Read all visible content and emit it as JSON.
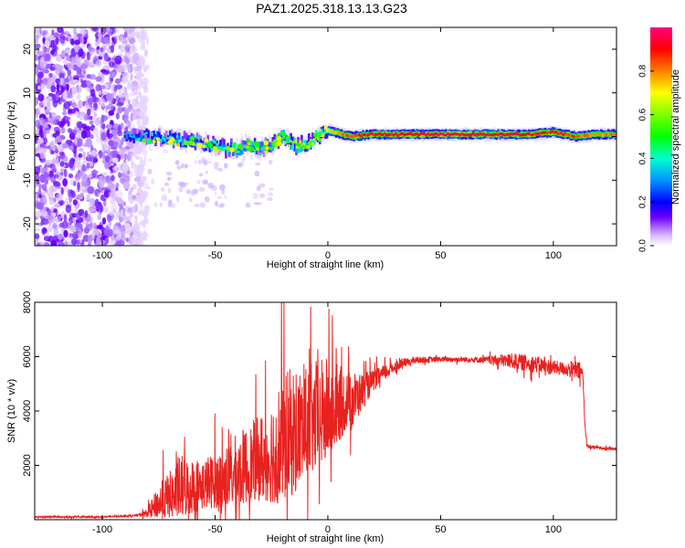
{
  "title": "PAZ1.2025.318.13.13.G23",
  "chart_data": [
    {
      "type": "heatmap",
      "name": "spectrogram",
      "xlabel": "Height of straight line (km)",
      "ylabel": "Frequency (Hz)",
      "xlim": [
        -130,
        128
      ],
      "ylim": [
        -25,
        25
      ],
      "xticks": [
        -100,
        -50,
        0,
        50,
        100
      ],
      "yticks": [
        -20,
        -10,
        0,
        10,
        20
      ],
      "colorbar": {
        "label": "Normalized spectral amplitude",
        "range": [
          0,
          1
        ],
        "ticks": [
          0.0,
          0.2,
          0.4,
          0.6,
          0.8
        ]
      },
      "noise_region_x": [
        -130,
        -80
      ],
      "signal_trace": {
        "x": [
          -90,
          -80,
          -70,
          -60,
          -50,
          -40,
          -35,
          -30,
          -25,
          -20,
          -15,
          -10,
          -5,
          0,
          10,
          20,
          30,
          40,
          50,
          60,
          70,
          80,
          90,
          100,
          110,
          120,
          128
        ],
        "freq": [
          0,
          0,
          -0.5,
          -1,
          -2,
          -3,
          -2,
          -3,
          -2,
          0,
          -2,
          -2,
          0,
          1.5,
          0,
          0.5,
          0.5,
          0.5,
          0.5,
          0.5,
          0.5,
          0.5,
          0.5,
          1,
          0,
          0.5,
          0.5
        ],
        "amplitude": [
          0.3,
          0.35,
          0.4,
          0.4,
          0.4,
          0.45,
          0.5,
          0.45,
          0.5,
          0.55,
          0.6,
          0.6,
          0.65,
          0.7,
          0.85,
          0.9,
          0.9,
          0.92,
          0.95,
          0.95,
          0.95,
          0.93,
          0.9,
          0.88,
          0.85,
          0.8,
          0.8
        ]
      }
    },
    {
      "type": "line",
      "name": "snr",
      "xlabel": "Height of straight line (km)",
      "ylabel": "SNR (10 * v/v)",
      "xlim": [
        -130,
        128
      ],
      "ylim": [
        0,
        8000
      ],
      "xticks": [
        -100,
        -50,
        0,
        50,
        100
      ],
      "yticks": [
        2000,
        4000,
        6000,
        8000
      ],
      "color": "#e8221f",
      "envelope": {
        "x": [
          -130,
          -100,
          -85,
          -80,
          -75,
          -70,
          -65,
          -60,
          -55,
          -50,
          -45,
          -40,
          -35,
          -30,
          -25,
          -20,
          -15,
          -10,
          -5,
          0,
          5,
          10,
          15,
          20,
          25,
          30,
          35,
          40,
          50,
          60,
          70,
          80,
          90,
          100,
          105,
          110,
          112,
          113,
          114,
          115,
          120,
          128
        ],
        "base": [
          100,
          100,
          150,
          250,
          500,
          700,
          900,
          1000,
          1100,
          1200,
          1300,
          1500,
          1700,
          1900,
          2100,
          2400,
          2700,
          3000,
          3300,
          3600,
          3900,
          4300,
          4700,
          5100,
          5400,
          5650,
          5800,
          5880,
          5900,
          5900,
          5880,
          5850,
          5750,
          5600,
          5550,
          5500,
          5450,
          5400,
          3500,
          2700,
          2650,
          2600
        ],
        "noise": [
          30,
          30,
          30,
          150,
          800,
          1100,
          1500,
          1300,
          1200,
          1300,
          1500,
          1700,
          1800,
          2000,
          2500,
          3000,
          3000,
          2600,
          2600,
          2400,
          1800,
          1200,
          700,
          400,
          300,
          200,
          150,
          120,
          100,
          100,
          120,
          280,
          320,
          280,
          250,
          350,
          350,
          150,
          80,
          80,
          60,
          60
        ]
      }
    }
  ]
}
